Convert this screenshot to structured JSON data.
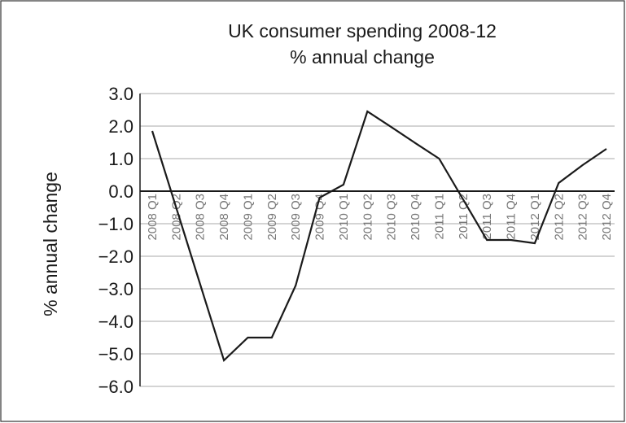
{
  "chart_data": {
    "type": "line",
    "title": "UK consumer spending 2008-12",
    "subtitle": "% annual change",
    "y_label": "% annual change",
    "categories": [
      "2008 Q1",
      "2008 Q2",
      "2008 Q3",
      "2008 Q4",
      "2009 Q1",
      "2009 Q2",
      "2009 Q3",
      "2009 Q4",
      "2010 Q1",
      "2010 Q2",
      "2010 Q3",
      "2010 Q4",
      "2011 Q1",
      "2011 Q2",
      "2011 Q3",
      "2011 Q4",
      "2012 Q1",
      "2012 Q2",
      "2012 Q3",
      "2012 Q4"
    ],
    "values": [
      1.85,
      -0.5,
      -2.85,
      -5.2,
      -4.5,
      -4.5,
      -2.9,
      -0.2,
      0.2,
      2.45,
      1.97,
      1.48,
      1.0,
      -0.25,
      -1.5,
      -1.5,
      -1.6,
      0.25,
      0.8,
      1.3
    ],
    "color": "#1a1a1a",
    "ylim": [
      -6,
      3
    ],
    "yticks": [
      {
        "value": 3,
        "label": "3.0"
      },
      {
        "value": 2,
        "label": "2.0"
      },
      {
        "value": 1,
        "label": "1.0"
      },
      {
        "value": 0,
        "label": "0.0"
      },
      {
        "value": -1,
        "label": "−1.0"
      },
      {
        "value": -2,
        "label": "−2.0"
      },
      {
        "value": -3,
        "label": "−3.0"
      },
      {
        "value": -4,
        "label": "−4.0"
      },
      {
        "value": -5,
        "label": "−5.0"
      },
      {
        "value": -6,
        "label": "−6.0"
      }
    ],
    "grid": true
  }
}
